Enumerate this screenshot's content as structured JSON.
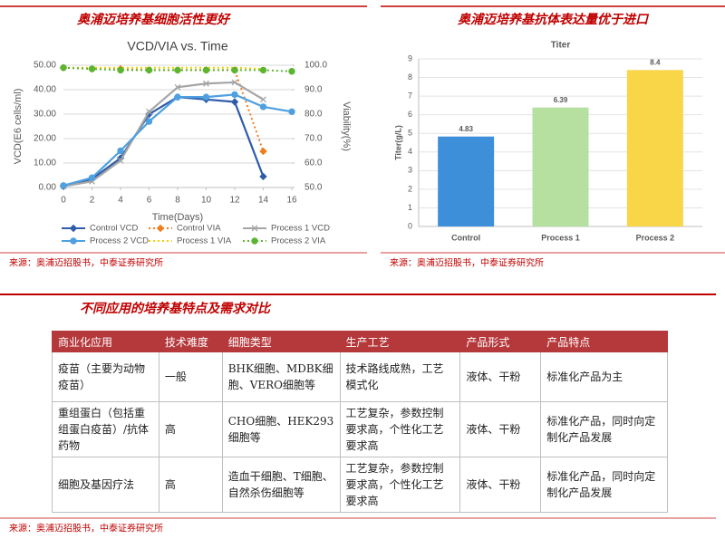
{
  "left_heading": "奥浦迈培养基细胞活性更好",
  "right_heading": "奥浦迈培养基抗体表达量优于进口",
  "left_source": "来源：奥浦迈招股书，中泰证券研究所",
  "right_source": "来源：奥浦迈招股书，中泰证券研究所",
  "chart_data": [
    {
      "type": "line",
      "title": "VCD/VIA vs. Time",
      "x_label": "Time(Days)",
      "y_label": "VCD(E6 cells/ml)",
      "y2_label": "Viability(%)",
      "xlim": [
        0,
        16
      ],
      "xticks": [
        0,
        2,
        4,
        6,
        8,
        10,
        12,
        14,
        16
      ],
      "ylim": [
        0,
        50
      ],
      "yticks": [
        {
          "value": 0,
          "label": "0.00"
        },
        {
          "value": 10,
          "label": "10.00"
        },
        {
          "value": 20,
          "label": "20.00"
        },
        {
          "value": 30,
          "label": "30.00"
        },
        {
          "value": 40,
          "label": "40.00"
        },
        {
          "value": 50,
          "label": "50.00"
        }
      ],
      "y2lim": [
        50,
        100
      ],
      "y2ticks": [
        {
          "value": 50,
          "label": "50.0"
        },
        {
          "value": 60,
          "label": "60.0"
        },
        {
          "value": 70,
          "label": "70.0"
        },
        {
          "value": 80,
          "label": "80.0"
        },
        {
          "value": 90,
          "label": "90.0"
        },
        {
          "value": 100,
          "label": "100.0"
        }
      ],
      "grid": true,
      "legend": "bottom",
      "series": [
        {
          "name": "Control VCD",
          "color": "#2e5ca8",
          "marker": "diamond",
          "dash": "solid",
          "x": [
            0,
            2,
            4,
            6,
            8,
            10,
            12,
            14
          ],
          "values": [
            0.5,
            3.5,
            12,
            30,
            37,
            36,
            35,
            4.5
          ]
        },
        {
          "name": "Control VIA",
          "color": "#f07d1e",
          "marker": "diamond",
          "dash": "dotted",
          "axis": "y2",
          "x": [
            0,
            2,
            4,
            6,
            8,
            10,
            12,
            14
          ],
          "values": [
            99,
            98.5,
            98.5,
            98,
            98,
            98,
            98,
            64.8
          ]
        },
        {
          "name": "Process 1 VCD",
          "color": "#a5a5a5",
          "marker": "x",
          "dash": "solid",
          "x": [
            0,
            2,
            4,
            6,
            8,
            10,
            12,
            14
          ],
          "values": [
            0.5,
            2.5,
            11,
            31,
            41,
            42.5,
            43,
            36
          ]
        },
        {
          "name": "Process 2 VCD",
          "color": "#4ea0e0",
          "marker": "circle",
          "dash": "solid",
          "x": [
            0,
            2,
            4,
            6,
            8,
            10,
            12,
            14,
            16
          ],
          "values": [
            0.8,
            4,
            15,
            27,
            37,
            37,
            38,
            33,
            31
          ]
        },
        {
          "name": "Process 1 VIA",
          "color": "#f5d000",
          "marker": "none",
          "dash": "dotted",
          "axis": "y2",
          "x": [
            0,
            2,
            4,
            6,
            8,
            10,
            12,
            14
          ],
          "values": [
            99,
            99,
            99,
            99,
            99,
            99,
            99,
            98.5
          ]
        },
        {
          "name": "Process 2 VIA",
          "color": "#5cb531",
          "marker": "circle",
          "dash": "dotted",
          "axis": "y2",
          "x": [
            0,
            2,
            4,
            6,
            8,
            10,
            12,
            14,
            16
          ],
          "values": [
            99,
            98.5,
            98,
            98,
            98,
            98,
            98,
            98,
            97.5
          ]
        }
      ]
    },
    {
      "type": "bar",
      "title": "Titer",
      "y_label": "Titer(g/L)",
      "categories": [
        "Control",
        "Process 1",
        "Process 2"
      ],
      "values": [
        4.83,
        6.39,
        8.4
      ],
      "colors": [
        "#3d8fd9",
        "#b5e0a0",
        "#f9d548"
      ],
      "ylim": [
        0,
        9
      ],
      "yticks": [
        0,
        1,
        2,
        3,
        4,
        5,
        6,
        7,
        8,
        9
      ],
      "grid": true
    }
  ],
  "table_heading": "不同应用的培养基特点及需求对比",
  "table": {
    "header": [
      "商业化应用",
      "技术难度",
      "细胞类型",
      "生产工艺",
      "产品形式",
      "产品特点"
    ],
    "rows": [
      [
        "疫苗（主要为动物疫苗）",
        "一般",
        "BHK细胞、MDBK细胞、VERO细胞等",
        "技术路线成熟，工艺模式化",
        "液体、干粉",
        "标准化产品为主"
      ],
      [
        "重组蛋白（包括重组蛋白疫苗）/抗体药物",
        "高",
        "CHO细胞、HEK293细胞等",
        "工艺复杂，参数控制要求高，个性化工艺要求高",
        "液体、干粉",
        "标准化产品，同时向定制化产品发展"
      ],
      [
        "细胞及基因疗法",
        "高",
        "造血干细胞、T细胞、自然杀伤细胞等",
        "工艺复杂，参数控制要求高，个性化工艺要求高",
        "液体、干粉",
        "标准化产品，同时向定制化产品发展"
      ]
    ]
  },
  "table_source": "来源：奥浦迈招股书，中泰证券研究所"
}
